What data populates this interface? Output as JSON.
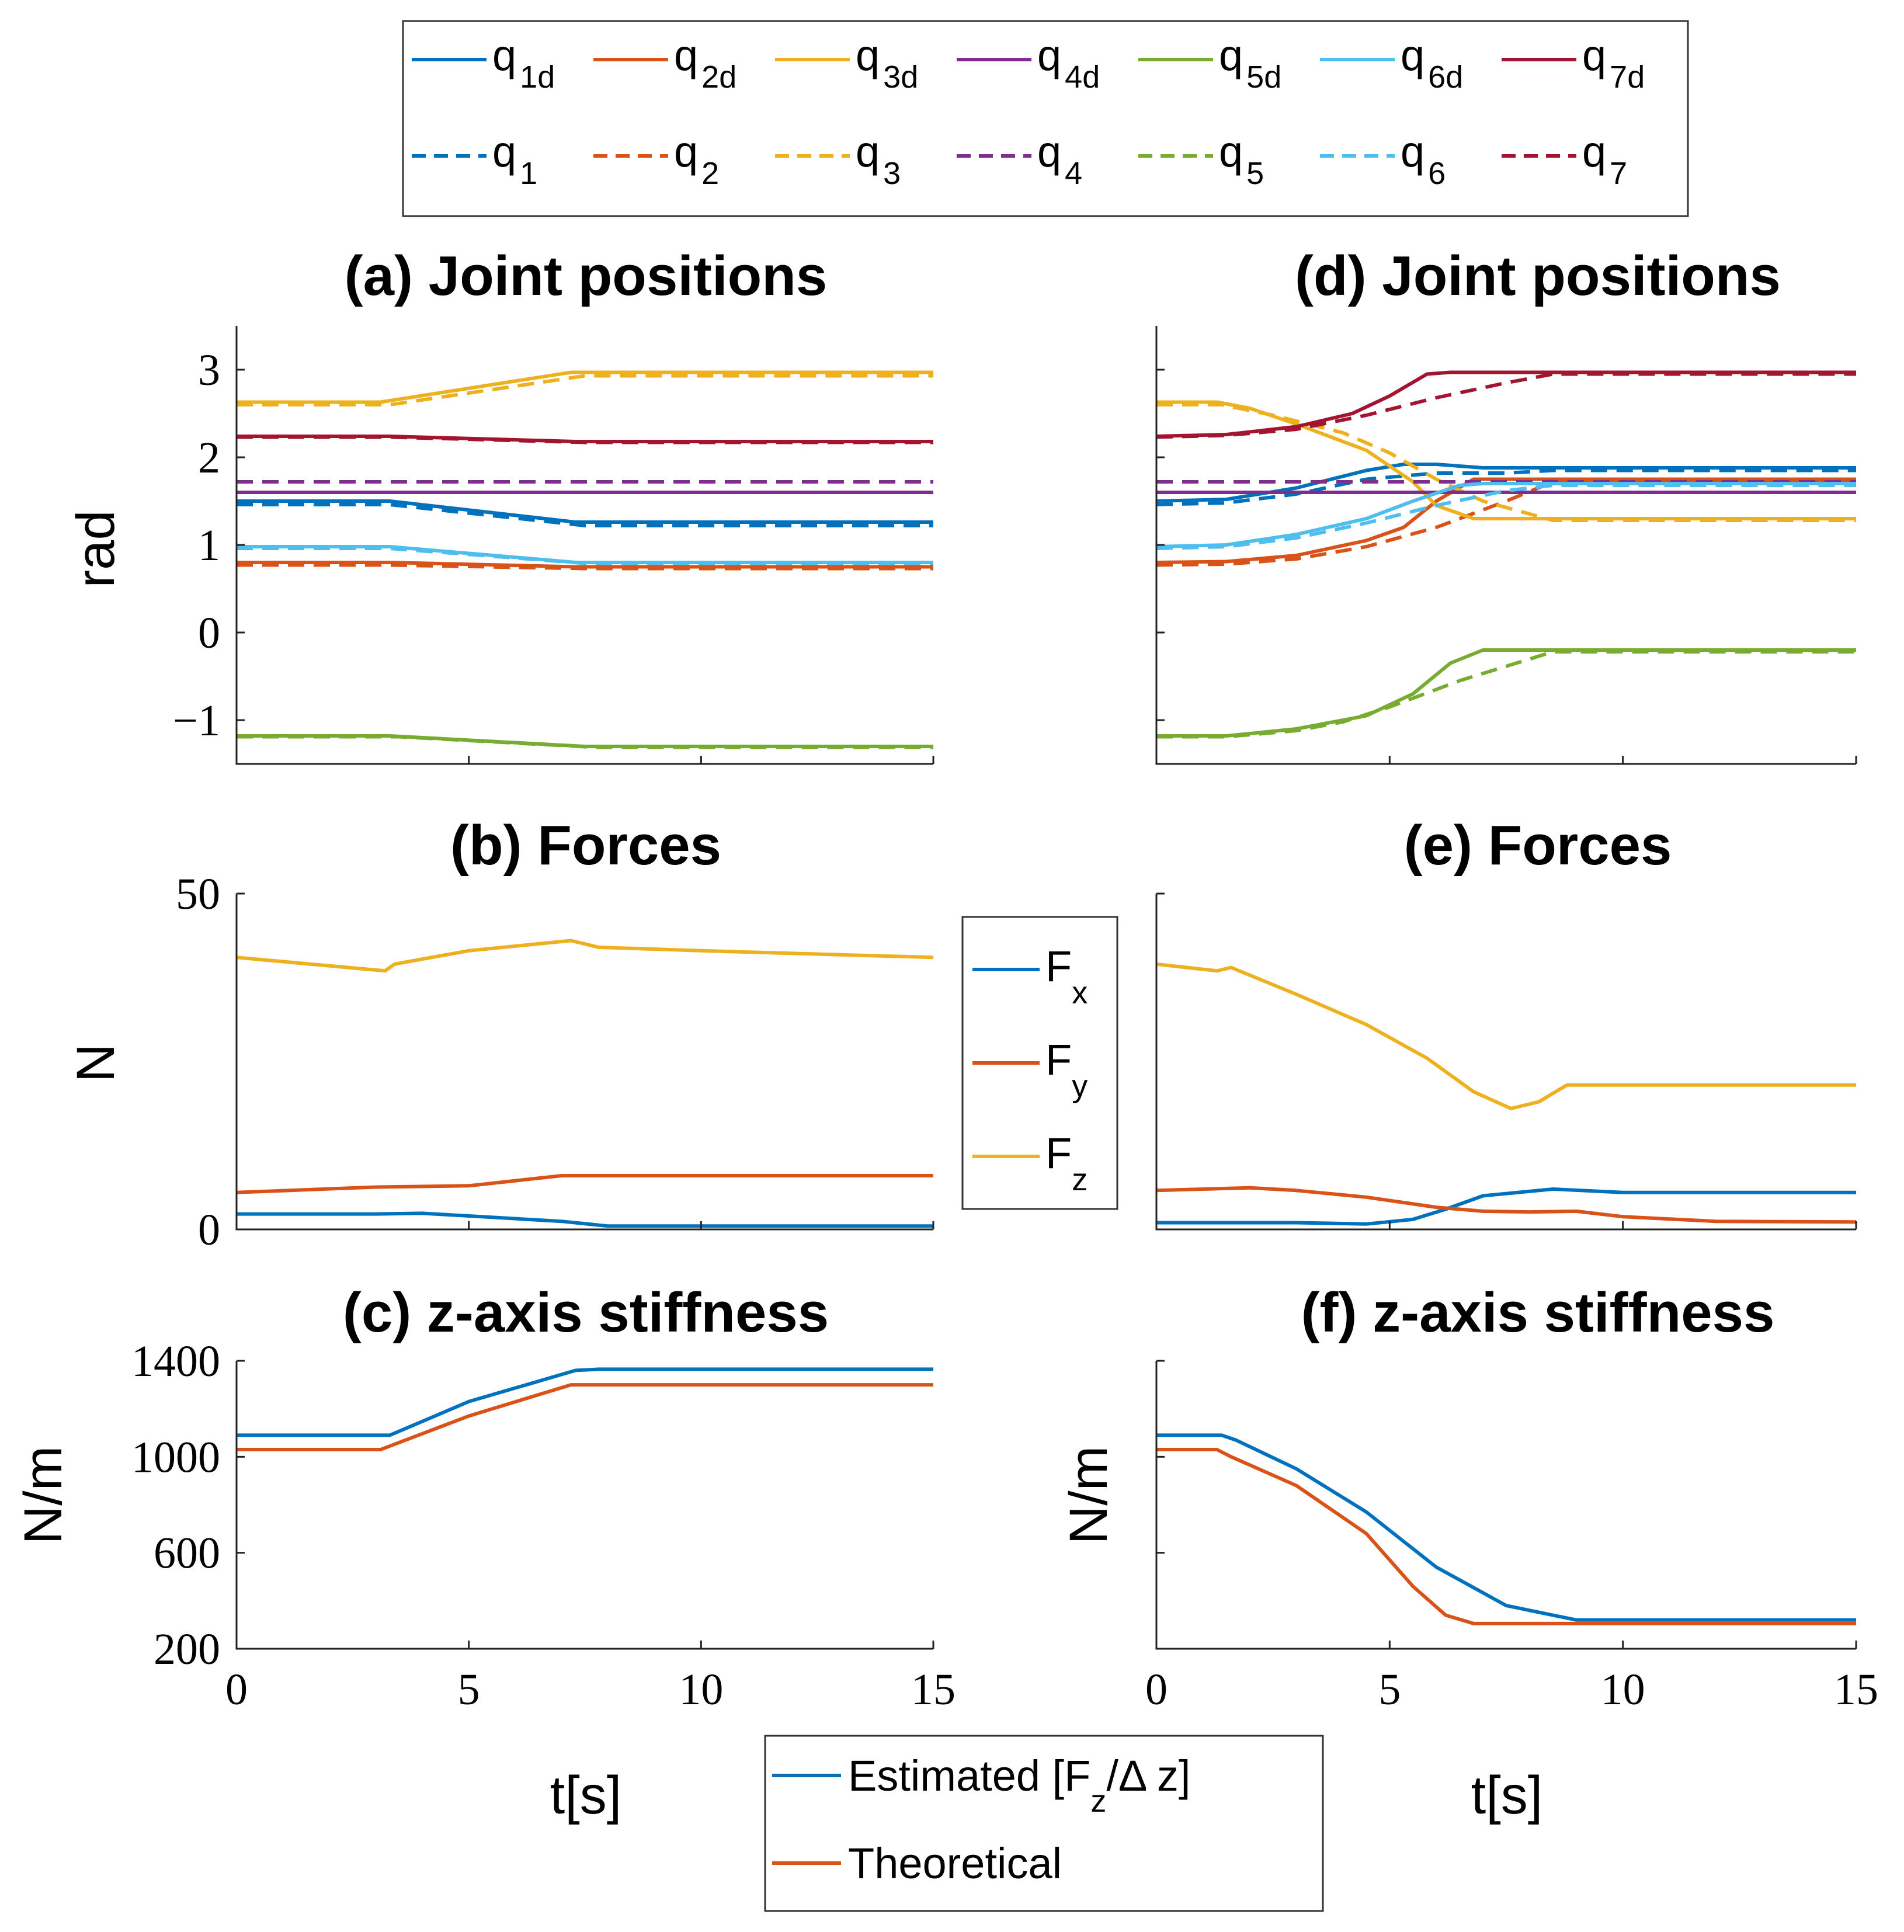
{
  "colors": {
    "c1": "#0072BD",
    "c2": "#D95319",
    "c3": "#EDB120",
    "c4": "#7E2F8E",
    "c5": "#77AC30",
    "c6": "#4DBEEE",
    "c7": "#A2142F"
  },
  "legend_joints": {
    "desired": [
      {
        "base": "q",
        "sub": "1d",
        "color": "#0072BD"
      },
      {
        "base": "q",
        "sub": "2d",
        "color": "#D95319"
      },
      {
        "base": "q",
        "sub": "3d",
        "color": "#EDB120"
      },
      {
        "base": "q",
        "sub": "4d",
        "color": "#7E2F8E"
      },
      {
        "base": "q",
        "sub": "5d",
        "color": "#77AC30"
      },
      {
        "base": "q",
        "sub": "6d",
        "color": "#4DBEEE"
      },
      {
        "base": "q",
        "sub": "7d",
        "color": "#A2142F"
      }
    ],
    "actual": [
      {
        "base": "q",
        "sub": "1",
        "color": "#0072BD"
      },
      {
        "base": "q",
        "sub": "2",
        "color": "#D95319"
      },
      {
        "base": "q",
        "sub": "3",
        "color": "#EDB120"
      },
      {
        "base": "q",
        "sub": "4",
        "color": "#7E2F8E"
      },
      {
        "base": "q",
        "sub": "5",
        "color": "#77AC30"
      },
      {
        "base": "q",
        "sub": "6",
        "color": "#4DBEEE"
      },
      {
        "base": "q",
        "sub": "7",
        "color": "#A2142F"
      }
    ]
  },
  "legend_forces": [
    {
      "base": "F",
      "sub": "x",
      "color": "#0072BD"
    },
    {
      "base": "F",
      "sub": "y",
      "color": "#D95319"
    },
    {
      "base": "F",
      "sub": "z",
      "color": "#EDB120"
    }
  ],
  "legend_stiffness": [
    {
      "label": "Estimated [F",
      "sub": "z",
      "tail": "/Δ z]",
      "color": "#0072BD"
    },
    {
      "label": "Theoretical",
      "sub": "",
      "tail": "",
      "color": "#D95319"
    }
  ],
  "chart_data": [
    {
      "id": "a",
      "type": "line",
      "title": "(a) Joint positions",
      "xlabel": "",
      "ylabel": "rad",
      "xlim": [
        0,
        15
      ],
      "ylim": [
        -1.5,
        3.5
      ],
      "xticks": [
        0,
        5,
        10,
        15
      ],
      "yticks": [
        -1,
        0,
        1,
        2,
        3
      ],
      "yticklabels": [
        "−1",
        "0",
        "1",
        "2",
        "3"
      ],
      "show_xticklabels": false,
      "series": [
        {
          "name": "q1d",
          "color": "#0072BD",
          "dash": false,
          "x": [
            0,
            3.3,
            7.3,
            15
          ],
          "y": [
            1.5,
            1.5,
            1.26,
            1.26
          ]
        },
        {
          "name": "q1",
          "color": "#0072BD",
          "dash": true,
          "x": [
            0,
            3.3,
            7.5,
            15
          ],
          "y": [
            1.46,
            1.46,
            1.22,
            1.22
          ]
        },
        {
          "name": "q2d",
          "color": "#D95319",
          "dash": false,
          "x": [
            0,
            3.3,
            7.3,
            15
          ],
          "y": [
            0.8,
            0.8,
            0.75,
            0.75
          ]
        },
        {
          "name": "q2",
          "color": "#D95319",
          "dash": true,
          "x": [
            0,
            3.3,
            7.5,
            15
          ],
          "y": [
            0.77,
            0.77,
            0.73,
            0.73
          ]
        },
        {
          "name": "q3d",
          "color": "#EDB120",
          "dash": false,
          "x": [
            0,
            3.1,
            7.2,
            15
          ],
          "y": [
            2.63,
            2.63,
            2.97,
            2.97
          ]
        },
        {
          "name": "q3",
          "color": "#EDB120",
          "dash": true,
          "x": [
            0,
            3.3,
            7.5,
            15
          ],
          "y": [
            2.6,
            2.6,
            2.93,
            2.93
          ]
        },
        {
          "name": "q4d",
          "color": "#7E2F8E",
          "dash": false,
          "x": [
            0,
            15
          ],
          "y": [
            1.6,
            1.6
          ]
        },
        {
          "name": "q4",
          "color": "#7E2F8E",
          "dash": true,
          "x": [
            0,
            15
          ],
          "y": [
            1.72,
            1.72
          ]
        },
        {
          "name": "q5d",
          "color": "#77AC30",
          "dash": false,
          "x": [
            0,
            3.3,
            7.5,
            15
          ],
          "y": [
            -1.18,
            -1.18,
            -1.3,
            -1.3
          ]
        },
        {
          "name": "q5",
          "color": "#77AC30",
          "dash": true,
          "x": [
            0,
            3.5,
            7.7,
            15
          ],
          "y": [
            -1.19,
            -1.19,
            -1.31,
            -1.31
          ]
        },
        {
          "name": "q6d",
          "color": "#4DBEEE",
          "dash": false,
          "x": [
            0,
            3.3,
            7.3,
            15
          ],
          "y": [
            0.98,
            0.98,
            0.8,
            0.8
          ]
        },
        {
          "name": "q6",
          "color": "#4DBEEE",
          "dash": true,
          "x": [
            0,
            3.3,
            7.5,
            15
          ],
          "y": [
            0.96,
            0.96,
            0.79,
            0.79
          ]
        },
        {
          "name": "q7d",
          "color": "#A2142F",
          "dash": false,
          "x": [
            0,
            3.3,
            7.3,
            15
          ],
          "y": [
            2.24,
            2.24,
            2.18,
            2.18
          ]
        },
        {
          "name": "q7",
          "color": "#A2142F",
          "dash": true,
          "x": [
            0,
            3.3,
            7.5,
            15
          ],
          "y": [
            2.23,
            2.23,
            2.17,
            2.17
          ]
        }
      ]
    },
    {
      "id": "b",
      "type": "line",
      "title": "(b) Forces",
      "xlabel": "",
      "ylabel": "N",
      "xlim": [
        0,
        15
      ],
      "ylim": [
        0,
        50
      ],
      "xticks": [
        0,
        5,
        10,
        15
      ],
      "yticks": [
        0,
        50
      ],
      "yticklabels": [
        "0",
        "50"
      ],
      "show_xticklabels": false,
      "series": [
        {
          "name": "Fx",
          "color": "#0072BD",
          "dash": false,
          "x": [
            0,
            3,
            4,
            7,
            8,
            15
          ],
          "y": [
            2.3,
            2.3,
            2.4,
            1.2,
            0.5,
            0.5
          ]
        },
        {
          "name": "Fy",
          "color": "#D95319",
          "dash": false,
          "x": [
            0,
            3,
            5,
            7,
            8,
            15
          ],
          "y": [
            5.5,
            6.3,
            6.5,
            8,
            8,
            8
          ]
        },
        {
          "name": "Fz",
          "color": "#EDB120",
          "dash": false,
          "x": [
            0,
            3.2,
            3.4,
            5,
            7.2,
            7.8,
            10,
            15
          ],
          "y": [
            40.5,
            38.5,
            39.5,
            41.5,
            43,
            42,
            41.5,
            40.5
          ]
        }
      ]
    },
    {
      "id": "c",
      "type": "line",
      "title": "(c) z-axis stiffness",
      "xlabel": "t[s]",
      "ylabel": "N/m",
      "xlim": [
        0,
        15
      ],
      "ylim": [
        200,
        1400
      ],
      "xticks": [
        0,
        5,
        10,
        15
      ],
      "yticks": [
        200,
        600,
        1000,
        1400
      ],
      "yticklabels": [
        "200",
        "600",
        "1000",
        "1400"
      ],
      "show_xticklabels": true,
      "series": [
        {
          "name": "Estimated",
          "color": "#0072BD",
          "dash": false,
          "x": [
            0,
            3.3,
            5,
            7.3,
            7.8,
            15
          ],
          "y": [
            1090,
            1090,
            1230,
            1360,
            1365,
            1365
          ]
        },
        {
          "name": "Theoretical",
          "color": "#D95319",
          "dash": false,
          "x": [
            0,
            3.1,
            5,
            7.2,
            15
          ],
          "y": [
            1030,
            1030,
            1170,
            1300,
            1300
          ]
        }
      ]
    },
    {
      "id": "d",
      "type": "line",
      "title": "(d) Joint positions",
      "xlabel": "",
      "ylabel": "",
      "xlim": [
        0,
        15
      ],
      "ylim": [
        -1.5,
        3.5
      ],
      "xticks": [
        0,
        5,
        10,
        15
      ],
      "yticks": [
        -1,
        0,
        1,
        2,
        3
      ],
      "yticklabels": [],
      "show_xticklabels": false,
      "series": [
        {
          "name": "q1d",
          "color": "#0072BD",
          "dash": false,
          "x": [
            0,
            1.5,
            3,
            4.5,
            5.3,
            6,
            7,
            15
          ],
          "y": [
            1.5,
            1.52,
            1.65,
            1.85,
            1.92,
            1.92,
            1.88,
            1.88
          ]
        },
        {
          "name": "q1",
          "color": "#0072BD",
          "dash": true,
          "x": [
            0,
            1.5,
            3,
            4.5,
            6,
            7.5,
            8.5,
            15
          ],
          "y": [
            1.46,
            1.48,
            1.58,
            1.75,
            1.82,
            1.82,
            1.85,
            1.85
          ]
        },
        {
          "name": "q2d",
          "color": "#D95319",
          "dash": false,
          "x": [
            0,
            1.5,
            3,
            4.5,
            5.3,
            6,
            6.8,
            15
          ],
          "y": [
            0.8,
            0.81,
            0.88,
            1.05,
            1.2,
            1.5,
            1.75,
            1.75
          ]
        },
        {
          "name": "q2",
          "color": "#D95319",
          "dash": true,
          "x": [
            0,
            1.5,
            3,
            4.5,
            6,
            7.5,
            8.5,
            15
          ],
          "y": [
            0.77,
            0.78,
            0.84,
            0.98,
            1.2,
            1.5,
            1.72,
            1.72
          ]
        },
        {
          "name": "q3d",
          "color": "#EDB120",
          "dash": false,
          "x": [
            0,
            1.3,
            2,
            3,
            4.5,
            5.5,
            6,
            6.8,
            15
          ],
          "y": [
            2.63,
            2.63,
            2.56,
            2.38,
            2.08,
            1.72,
            1.45,
            1.3,
            1.3
          ]
        },
        {
          "name": "q3",
          "color": "#EDB120",
          "dash": true,
          "x": [
            0,
            1.4,
            2.5,
            4,
            5,
            6,
            7,
            8.5,
            15
          ],
          "y": [
            2.6,
            2.6,
            2.48,
            2.28,
            2.05,
            1.75,
            1.5,
            1.28,
            1.28
          ]
        },
        {
          "name": "q4d",
          "color": "#7E2F8E",
          "dash": false,
          "x": [
            0,
            15
          ],
          "y": [
            1.6,
            1.6
          ]
        },
        {
          "name": "q4",
          "color": "#7E2F8E",
          "dash": true,
          "x": [
            0,
            15
          ],
          "y": [
            1.72,
            1.72
          ]
        },
        {
          "name": "q5d",
          "color": "#77AC30",
          "dash": false,
          "x": [
            0,
            1.5,
            3,
            4.5,
            5.5,
            6.3,
            7,
            15
          ],
          "y": [
            -1.18,
            -1.18,
            -1.1,
            -0.95,
            -0.7,
            -0.35,
            -0.2,
            -0.2
          ]
        },
        {
          "name": "q5",
          "color": "#77AC30",
          "dash": true,
          "x": [
            0,
            1.5,
            3,
            4,
            5,
            6.5,
            8.5,
            15
          ],
          "y": [
            -1.19,
            -1.19,
            -1.12,
            -1.02,
            -0.85,
            -0.55,
            -0.22,
            -0.22
          ]
        },
        {
          "name": "q6d",
          "color": "#4DBEEE",
          "dash": false,
          "x": [
            0,
            1.5,
            3,
            4.5,
            5.5,
            6.5,
            7,
            15
          ],
          "y": [
            0.98,
            1.0,
            1.12,
            1.3,
            1.5,
            1.68,
            1.7,
            1.7
          ]
        },
        {
          "name": "q6",
          "color": "#4DBEEE",
          "dash": true,
          "x": [
            0,
            1.5,
            3,
            4.5,
            6,
            7.5,
            8.5,
            15
          ],
          "y": [
            0.96,
            0.98,
            1.08,
            1.25,
            1.45,
            1.62,
            1.68,
            1.68
          ]
        },
        {
          "name": "q7d",
          "color": "#A2142F",
          "dash": false,
          "x": [
            0,
            1.5,
            3,
            4.2,
            5,
            5.8,
            6.3,
            15
          ],
          "y": [
            2.24,
            2.26,
            2.35,
            2.5,
            2.7,
            2.95,
            2.97,
            2.97
          ]
        },
        {
          "name": "q7",
          "color": "#A2142F",
          "dash": true,
          "x": [
            0,
            1.5,
            3,
            4.5,
            6,
            7.5,
            8.5,
            15
          ],
          "y": [
            2.23,
            2.25,
            2.32,
            2.48,
            2.68,
            2.85,
            2.95,
            2.95
          ]
        }
      ]
    },
    {
      "id": "e",
      "type": "line",
      "title": "(e) Forces",
      "xlabel": "",
      "ylabel": "",
      "xlim": [
        0,
        15
      ],
      "ylim": [
        0,
        50
      ],
      "xticks": [
        0,
        5,
        10,
        15
      ],
      "yticks": [
        0,
        50
      ],
      "yticklabels": [],
      "show_xticklabels": false,
      "series": [
        {
          "name": "Fx",
          "color": "#0072BD",
          "dash": false,
          "x": [
            0,
            3,
            4.5,
            5.5,
            6.2,
            7,
            8.5,
            10,
            15
          ],
          "y": [
            1,
            1,
            0.8,
            1.5,
            3,
            5,
            6,
            5.5,
            5.5
          ]
        },
        {
          "name": "Fy",
          "color": "#D95319",
          "dash": false,
          "x": [
            0,
            1,
            2,
            3,
            4.5,
            6,
            7,
            8,
            9,
            10,
            12,
            15
          ],
          "y": [
            5.8,
            6,
            6.2,
            5.8,
            4.8,
            3.3,
            2.7,
            2.6,
            2.7,
            1.9,
            1.2,
            1.1
          ]
        },
        {
          "name": "Fz",
          "color": "#EDB120",
          "dash": false,
          "x": [
            0,
            1.3,
            1.6,
            3,
            4.5,
            5.8,
            6.8,
            7.6,
            8.2,
            8.8,
            10,
            15
          ],
          "y": [
            39.5,
            38.5,
            39,
            35,
            30.5,
            25.5,
            20.5,
            18,
            19,
            21.5,
            21.5,
            21.5
          ]
        }
      ]
    },
    {
      "id": "f",
      "type": "line",
      "title": "(f) z-axis stiffness",
      "xlabel": "t[s]",
      "ylabel": "N/m",
      "xlim": [
        0,
        15
      ],
      "ylim": [
        200,
        1400
      ],
      "xticks": [
        0,
        5,
        10,
        15
      ],
      "yticks": [
        200,
        600,
        1000,
        1400
      ],
      "yticklabels": [],
      "show_xticklabels": true,
      "series": [
        {
          "name": "Estimated",
          "color": "#0072BD",
          "dash": false,
          "x": [
            0,
            1.4,
            1.7,
            3,
            4.5,
            6,
            7.5,
            9,
            15
          ],
          "y": [
            1090,
            1090,
            1070,
            950,
            770,
            540,
            380,
            320,
            320
          ]
        },
        {
          "name": "Theoretical",
          "color": "#D95319",
          "dash": false,
          "x": [
            0,
            1.3,
            1.6,
            3,
            4.5,
            5.5,
            6.2,
            6.8,
            15
          ],
          "y": [
            1030,
            1030,
            1000,
            880,
            680,
            460,
            340,
            305,
            305
          ]
        }
      ]
    }
  ]
}
